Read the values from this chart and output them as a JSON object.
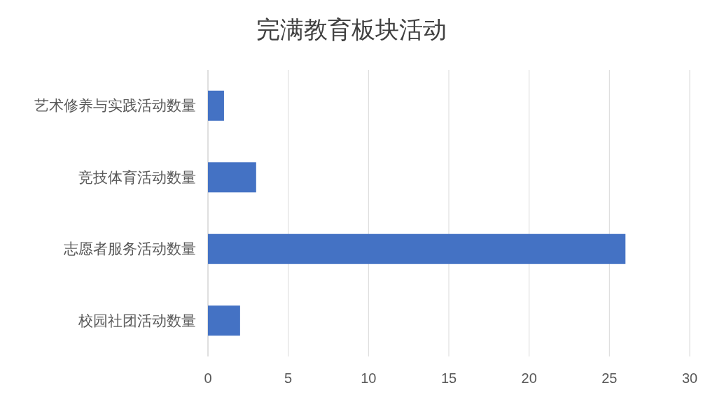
{
  "chart_data": {
    "type": "bar",
    "title": "完满教育板块活动",
    "orientation": "horizontal",
    "categories": [
      "艺术修养与实践活动数量",
      "竞技体育活动数量",
      "志愿者服务活动数量",
      "校园社团活动数量"
    ],
    "values": [
      1,
      3,
      26,
      2
    ],
    "color": "#4472c4",
    "xlim": [
      0,
      30
    ],
    "xticks": [
      0,
      5,
      10,
      15,
      20,
      25,
      30
    ],
    "grid": "x"
  }
}
